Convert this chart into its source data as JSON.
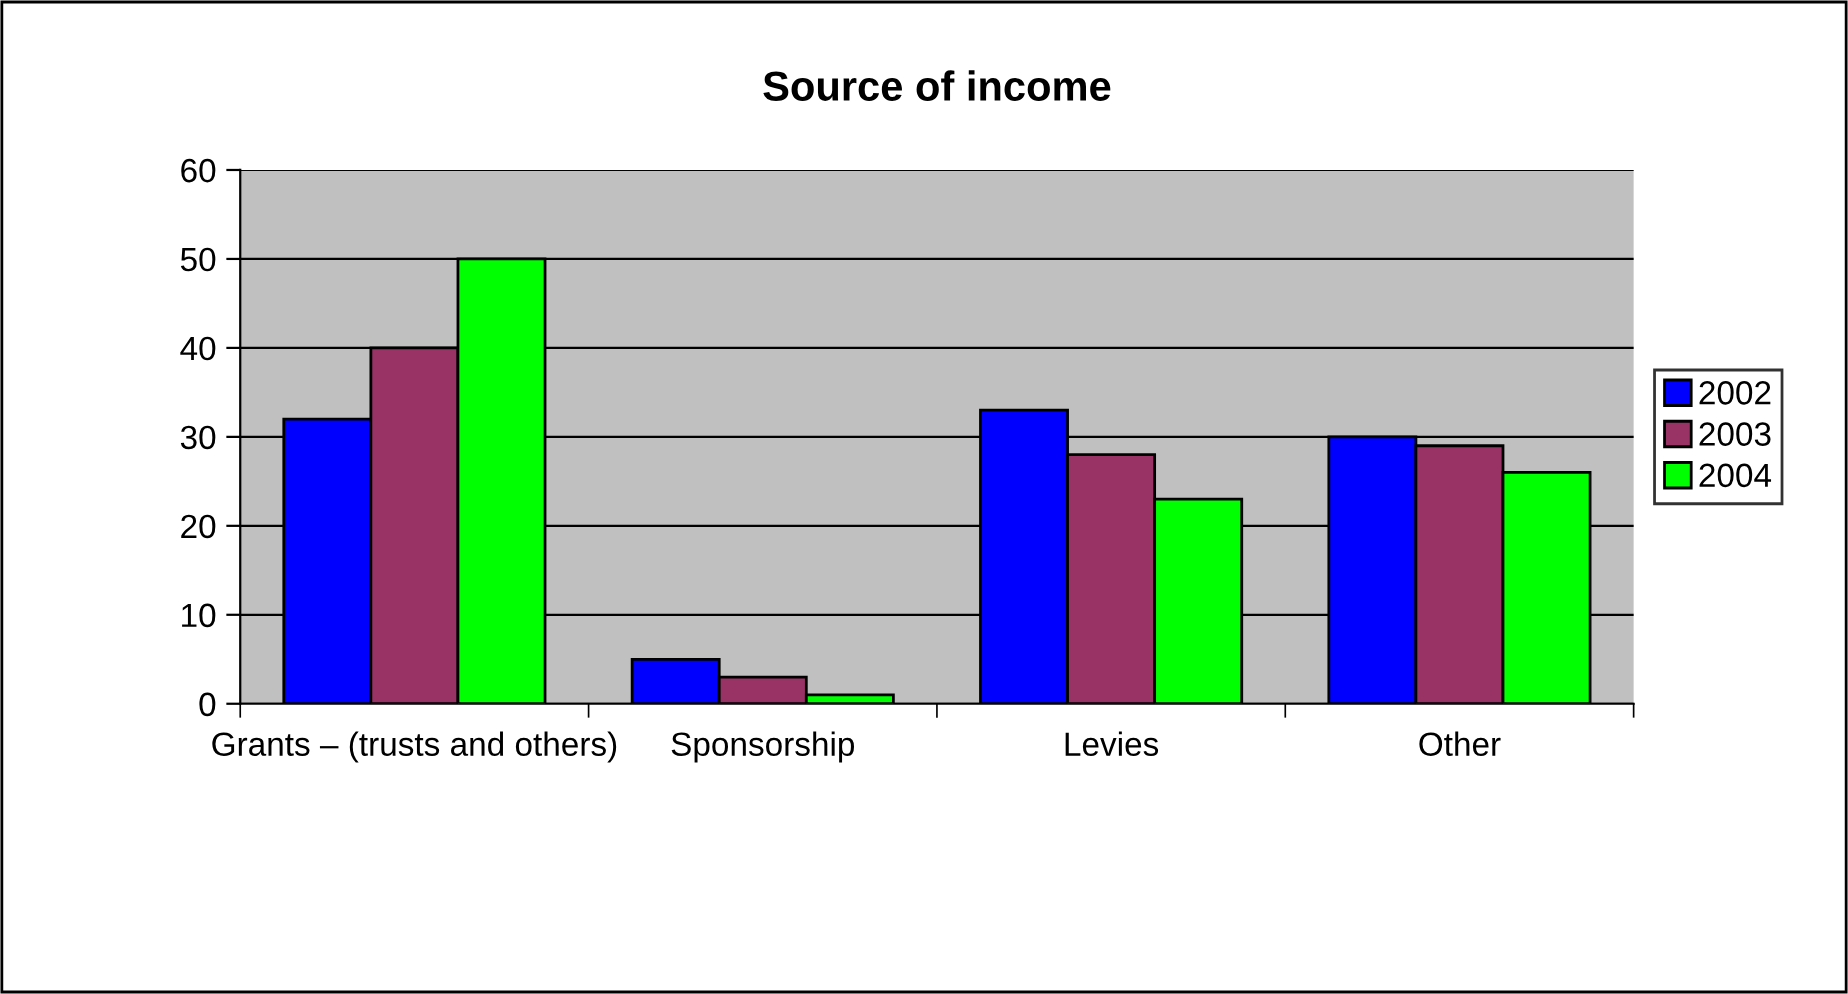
{
  "chart_data": {
    "type": "bar",
    "title": "Source of income",
    "categories": [
      "Grants – (trusts and others)",
      "Sponsorship",
      "Levies",
      "Other"
    ],
    "series": [
      {
        "name": "2002",
        "color": "#0000ff",
        "values": [
          32,
          5,
          33,
          30
        ]
      },
      {
        "name": "2003",
        "color": "#993366",
        "values": [
          40,
          3,
          28,
          29
        ]
      },
      {
        "name": "2004",
        "color": "#00ff00",
        "values": [
          50,
          1,
          23,
          26
        ]
      }
    ],
    "ylim": [
      0,
      60
    ],
    "yticks": [
      0,
      10,
      20,
      30,
      40,
      50,
      60
    ],
    "grid": "y",
    "legend": "right"
  }
}
